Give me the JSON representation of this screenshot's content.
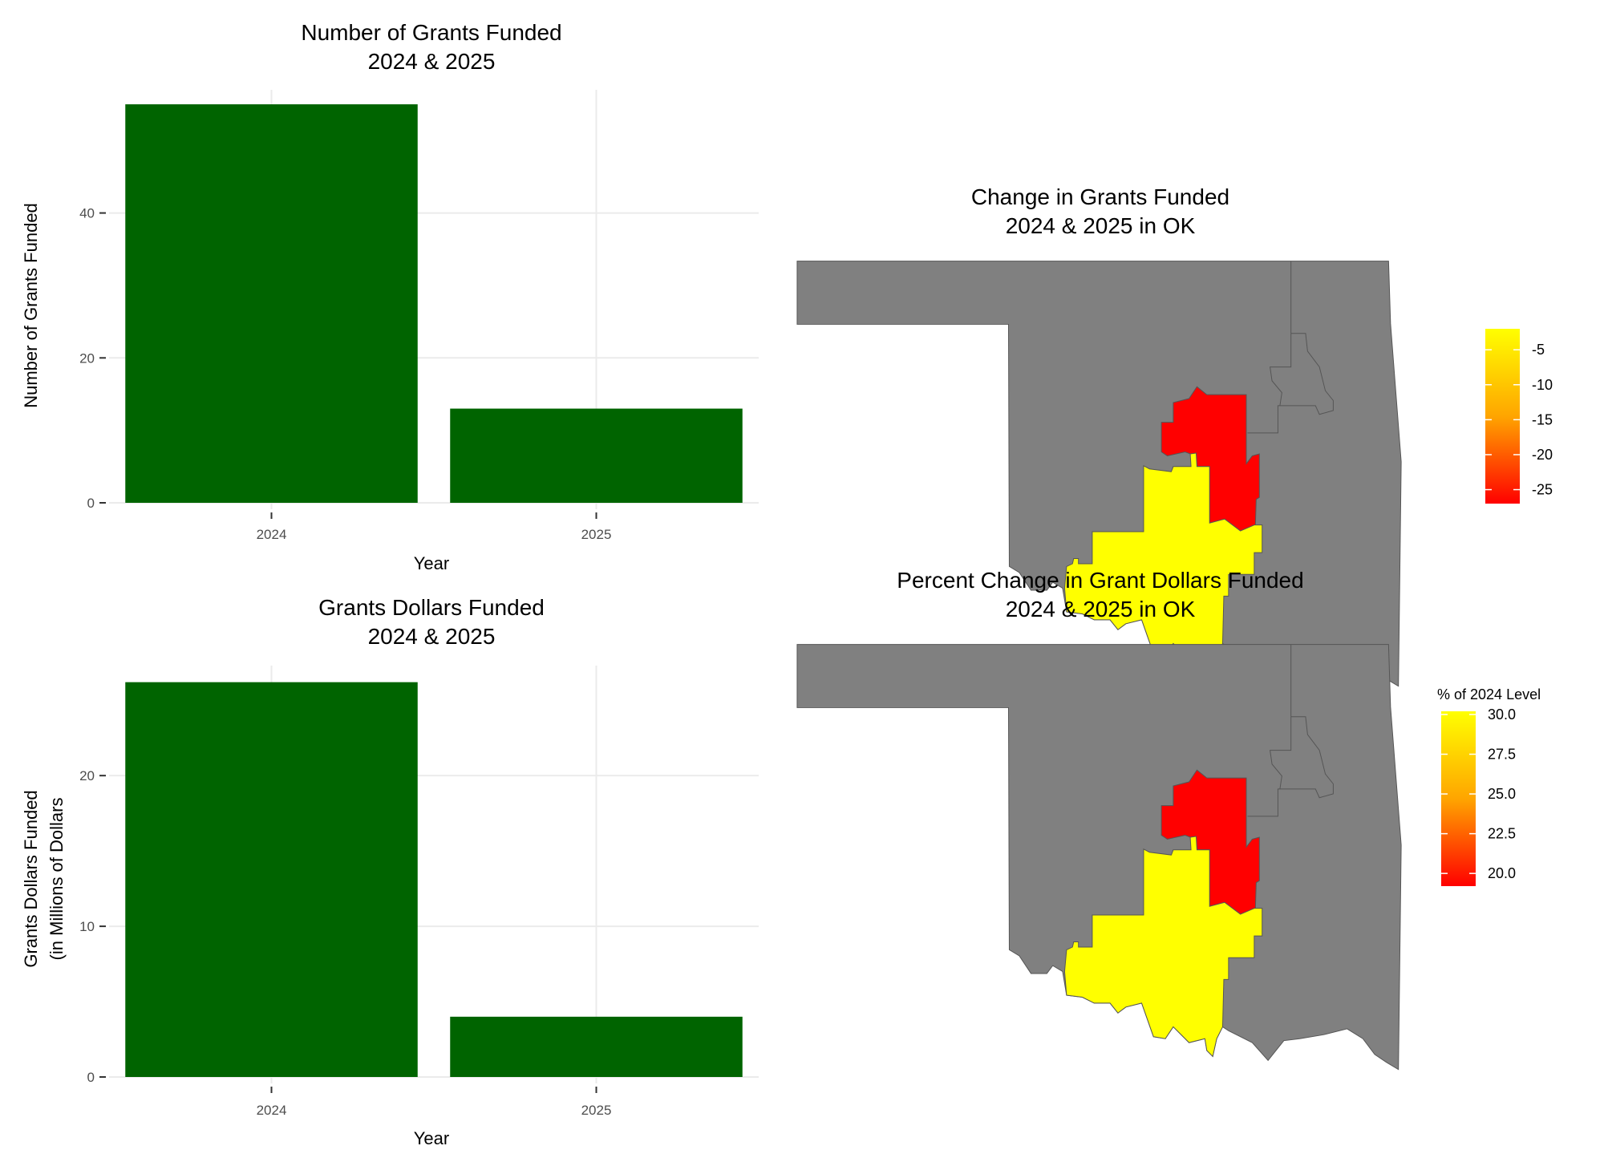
{
  "chart_data": [
    {
      "type": "bar",
      "title": [
        "Number of Grants Funded",
        "2024 & 2025"
      ],
      "xlabel": "Year",
      "ylabel": [
        "Number of Grants Funded"
      ],
      "categories": [
        "2024",
        "2025"
      ],
      "values": [
        55,
        13
      ],
      "yticks": [
        "0",
        "20",
        "40"
      ],
      "ytick_values": [
        0,
        20,
        40
      ],
      "ylim": [
        0,
        57
      ],
      "bar_color": "#006400",
      "grid": true
    },
    {
      "type": "bar",
      "title": [
        "Grants Dollars Funded",
        "2024 & 2025"
      ],
      "xlabel": "Year",
      "ylabel": [
        "Grants Dollars Funded",
        "(in Millions of Dollars"
      ],
      "categories": [
        "2024",
        "2025"
      ],
      "values": [
        26.2,
        4.0
      ],
      "yticks": [
        "0",
        "10",
        "20"
      ],
      "ytick_values": [
        0,
        10,
        20
      ],
      "ylim": [
        0,
        27.3
      ],
      "bar_color": "#006400",
      "grid": true
    },
    {
      "type": "choropleth",
      "title": [
        "Change in Grants Funded",
        "2024 & 2025 in OK"
      ],
      "legend_title": "",
      "legend_ticks": [
        "-5",
        "-10",
        "-15",
        "-20",
        "-25"
      ],
      "legend_tick_values": [
        -5,
        -10,
        -15,
        -20,
        -25
      ],
      "legend_range": [
        -27,
        -2
      ],
      "low_color": "#ff0000",
      "high_color": "#ffff00",
      "no_data_color": "#808080",
      "regions": [
        {
          "fill_value": -27,
          "color": "#ff0000"
        },
        {
          "fill_value": -2,
          "color": "#ffff00"
        }
      ],
      "legend_placement": "right"
    },
    {
      "type": "choropleth",
      "title": [
        "Percent Change in Grant Dollars Funded",
        "2024 & 2025 in OK"
      ],
      "legend_title": "% of 2024 Level",
      "legend_ticks": [
        "30.0",
        "27.5",
        "25.0",
        "22.5",
        "20.0"
      ],
      "legend_tick_values": [
        30,
        27.5,
        25,
        22.5,
        20
      ],
      "legend_range": [
        19.2,
        30.2
      ],
      "low_color": "#ff0000",
      "high_color": "#ffff00",
      "no_data_color": "#808080",
      "regions": [
        {
          "fill_value": 19.2,
          "color": "#ff0000"
        },
        {
          "fill_value": 30.2,
          "color": "#ffff00"
        }
      ],
      "legend_placement": "right"
    }
  ]
}
